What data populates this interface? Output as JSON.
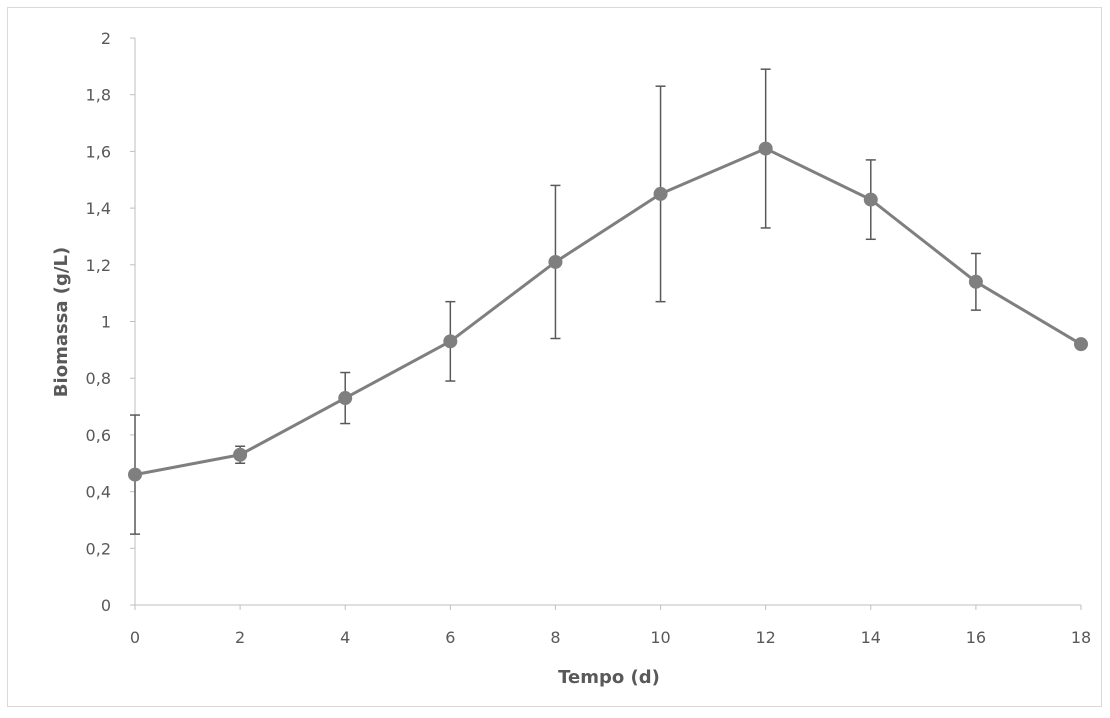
{
  "chart_data": {
    "type": "line",
    "title": "",
    "xlabel": "Tempo (d)",
    "ylabel": "Biomassa (g/L)",
    "x": [
      0,
      2,
      4,
      6,
      8,
      10,
      12,
      14,
      16,
      18
    ],
    "xlim": [
      0,
      18
    ],
    "ylim": [
      0,
      2
    ],
    "x_ticks": [
      "0",
      "2",
      "4",
      "6",
      "8",
      "10",
      "12",
      "14",
      "16",
      "18"
    ],
    "y_ticks": [
      "0",
      "0,2",
      "0,4",
      "0,6",
      "0,8",
      "1",
      "1,2",
      "1,4",
      "1,6",
      "1,8",
      "2"
    ],
    "series": [
      {
        "values": [
          0.46,
          0.53,
          0.73,
          0.93,
          1.21,
          1.45,
          1.61,
          1.43,
          1.14,
          0.92
        ],
        "error": [
          0.21,
          0.03,
          0.09,
          0.14,
          0.27,
          0.38,
          0.28,
          0.14,
          0.1,
          0.0
        ],
        "color": "#7f7f7f"
      }
    ],
    "grid": false,
    "legend": "none"
  }
}
